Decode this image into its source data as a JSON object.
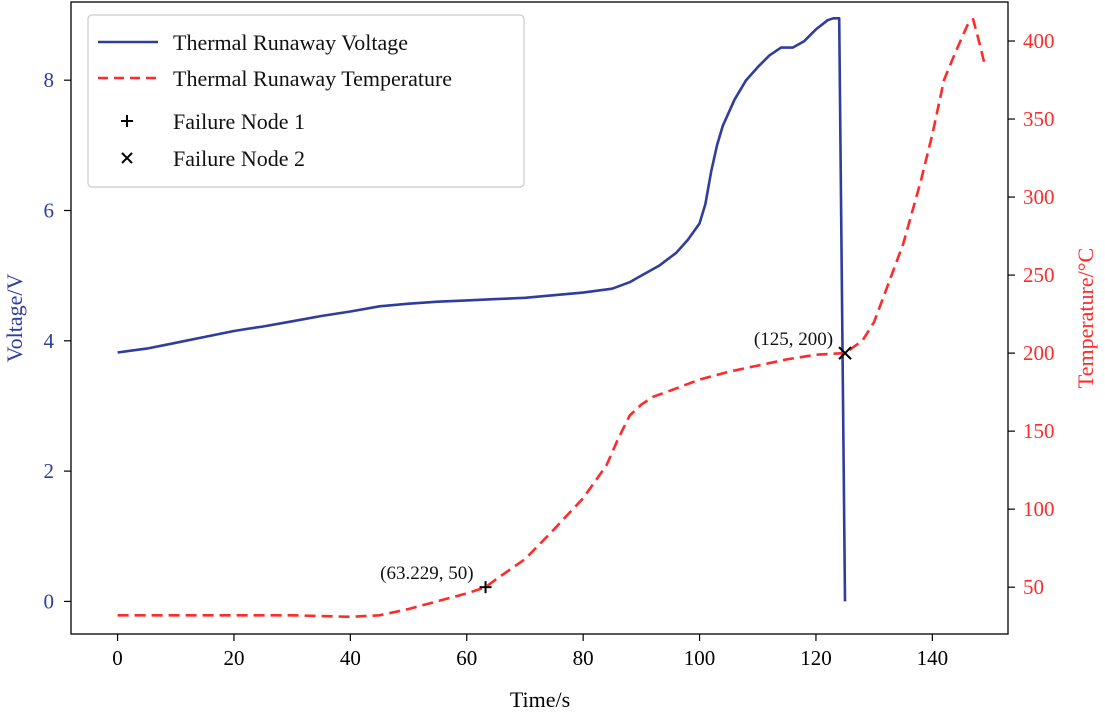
{
  "chart_data": {
    "type": "line",
    "title": "",
    "xlabel": "Time/s",
    "ylabel_left": "Voltage/V",
    "ylabel_right": "Temperature/°C",
    "xlim": [
      -8,
      153
    ],
    "ylim_left": [
      -0.5,
      9.2
    ],
    "ylim_right": [
      20,
      425
    ],
    "x_ticks": [
      0,
      20,
      40,
      60,
      80,
      100,
      120,
      140
    ],
    "y_left_ticks": [
      0,
      2,
      4,
      6,
      8
    ],
    "y_right_ticks": [
      50,
      100,
      150,
      200,
      250,
      300,
      350,
      400
    ],
    "grid": false,
    "legend_position": "top-left",
    "colors": {
      "voltage": "#2e3d9e",
      "temperature": "#ff2a2a",
      "marker": "#000000"
    },
    "series": [
      {
        "name": "Thermal Runaway Voltage",
        "axis": "left",
        "style": "solid",
        "x": [
          0,
          5,
          10,
          15,
          20,
          22,
          25,
          30,
          35,
          40,
          45,
          50,
          55,
          60,
          65,
          70,
          75,
          80,
          85,
          88,
          90,
          93,
          96,
          98,
          100,
          101,
          102,
          103,
          104,
          106,
          108,
          110,
          112,
          114,
          116,
          118,
          120,
          121,
          122,
          123,
          124,
          124.5,
          125
        ],
        "values": [
          3.82,
          3.88,
          3.97,
          4.06,
          4.15,
          4.18,
          4.22,
          4.3,
          4.38,
          4.45,
          4.53,
          4.57,
          4.6,
          4.62,
          4.64,
          4.66,
          4.7,
          4.74,
          4.8,
          4.9,
          5.0,
          5.15,
          5.35,
          5.55,
          5.8,
          6.1,
          6.6,
          7.0,
          7.3,
          7.7,
          8.0,
          8.2,
          8.38,
          8.5,
          8.5,
          8.6,
          8.78,
          8.85,
          8.92,
          8.95,
          8.95,
          4.5,
          0.0
        ]
      },
      {
        "name": "Thermal Runaway Temperature",
        "axis": "right",
        "style": "dashed",
        "x": [
          0,
          10,
          20,
          30,
          40,
          45,
          50,
          55,
          60,
          63.229,
          65,
          70,
          75,
          80,
          84,
          86,
          88,
          90,
          92,
          95,
          100,
          105,
          110,
          115,
          120,
          125,
          128,
          130,
          132,
          135,
          138,
          140,
          142,
          144,
          146,
          147,
          148,
          149
        ],
        "values": [
          32,
          32,
          32,
          32,
          31,
          32,
          36,
          41,
          46,
          50,
          55,
          68,
          87,
          107,
          128,
          145,
          160,
          167,
          172,
          176,
          183,
          188,
          192,
          196,
          199,
          200,
          208,
          220,
          240,
          270,
          310,
          340,
          375,
          393,
          410,
          414,
          400,
          385
        ]
      }
    ],
    "legend": [
      "Thermal Runaway Voltage",
      "Thermal Runaway Temperature",
      "Failure Node 1",
      "Failure Node 2"
    ],
    "points": [
      {
        "name": "Failure Node 1",
        "marker": "plus",
        "axis": "right",
        "x": 63.229,
        "y": 50,
        "label": "(63.229, 50)"
      },
      {
        "name": "Failure Node 2",
        "marker": "x",
        "axis": "right",
        "x": 125,
        "y": 200,
        "label": "(125, 200)"
      }
    ]
  }
}
